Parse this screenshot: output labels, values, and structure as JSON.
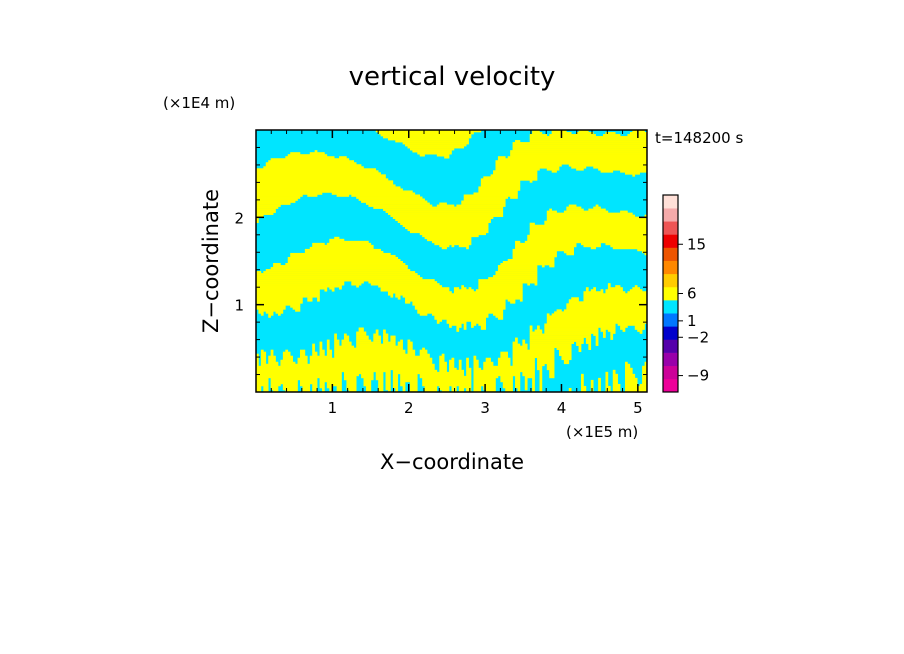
{
  "chart_data": {
    "type": "heatmap",
    "title": "vertical velocity",
    "xlabel": "X−coordinate",
    "ylabel": "Z−coordinate",
    "x_unit": "(×1E5 m)",
    "y_unit": "(×1E4 m)",
    "time_label": "t=148200 s",
    "xlim": [
      0,
      5.12
    ],
    "ylim": [
      0,
      3.0
    ],
    "x_ticks": [
      1,
      2,
      3,
      4,
      5
    ],
    "y_ticks": [
      1,
      2
    ],
    "colors": {
      "positive": "#ffff00",
      "negative": "#00e5ff"
    },
    "colorbar": {
      "colors": [
        "#ee0099",
        "#cc0099",
        "#9900aa",
        "#5500aa",
        "#0000cc",
        "#0077ff",
        "#00e5ff",
        "#ffff00",
        "#ffcc00",
        "#ff8800",
        "#ee5500",
        "#ee0000",
        "#ee5555",
        "#f5aaaa",
        "#ffe0d8"
      ],
      "labels": [
        {
          "text": "15",
          "value": 15
        },
        {
          "text": "6",
          "value": 6
        },
        {
          "text": "1",
          "value": 1
        },
        {
          "text": "−2",
          "value": -2
        },
        {
          "text": "−9",
          "value": -9
        }
      ]
    }
  }
}
